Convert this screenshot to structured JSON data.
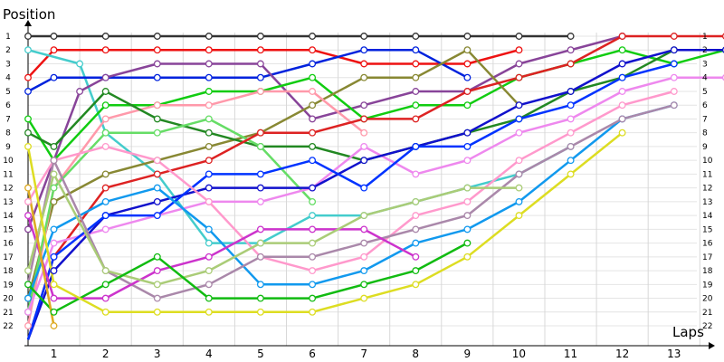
{
  "chart_data": {
    "type": "line",
    "title": "",
    "ylabel": "Position",
    "xlabel": "Laps",
    "x_ticks": [
      "1",
      "2",
      "3",
      "4",
      "5",
      "6",
      "7",
      "8",
      "9",
      "10",
      "11",
      "12",
      "13"
    ],
    "y_ticks": [
      "1",
      "2",
      "3",
      "4",
      "5",
      "6",
      "7",
      "8",
      "9",
      "10",
      "11",
      "12",
      "13",
      "14",
      "15",
      "16",
      "17",
      "18",
      "19",
      "20",
      "21",
      "22"
    ],
    "xlim": [
      0,
      13.4
    ],
    "ylim": [
      1,
      22
    ],
    "grid": true,
    "series": [
      {
        "color": "#333333",
        "points": [
          [
            0,
            1
          ],
          [
            0.5,
            1
          ],
          [
            1.5,
            1
          ],
          [
            2.5,
            1
          ],
          [
            3.5,
            1
          ],
          [
            4.5,
            1
          ],
          [
            5.5,
            1
          ],
          [
            6.5,
            1
          ],
          [
            7.5,
            1
          ],
          [
            8.5,
            1
          ],
          [
            9.5,
            1
          ],
          [
            10.5,
            1
          ]
        ]
      },
      {
        "color": "#ee1111",
        "points": [
          [
            0,
            4
          ],
          [
            0.5,
            2
          ],
          [
            1.5,
            2
          ],
          [
            2.5,
            2
          ],
          [
            3.5,
            2
          ],
          [
            4.5,
            2
          ],
          [
            5.5,
            2
          ],
          [
            6.5,
            3
          ],
          [
            7.5,
            3
          ],
          [
            8.5,
            3
          ],
          [
            9.5,
            2
          ]
        ]
      },
      {
        "color": "#44cccc",
        "points": [
          [
            0,
            2
          ],
          [
            1,
            3
          ],
          [
            1.5,
            8
          ],
          [
            2.5,
            11
          ],
          [
            3.5,
            16
          ],
          [
            4.5,
            16
          ],
          [
            5.5,
            14
          ],
          [
            6.5,
            14
          ],
          [
            7.5,
            13
          ],
          [
            8.5,
            12
          ],
          [
            9.5,
            11
          ],
          [
            10.5,
            9
          ]
        ]
      },
      {
        "color": "#0022dd",
        "points": [
          [
            0,
            5
          ],
          [
            0.5,
            4
          ],
          [
            1.5,
            4
          ],
          [
            2.5,
            4
          ],
          [
            3.5,
            4
          ],
          [
            4.5,
            4
          ],
          [
            5.5,
            3
          ],
          [
            6.5,
            2
          ],
          [
            7.5,
            2
          ],
          [
            8.5,
            4
          ]
        ]
      },
      {
        "color": "#884499",
        "points": [
          [
            0,
            15
          ],
          [
            1,
            5
          ],
          [
            1.5,
            4
          ],
          [
            2.5,
            3
          ],
          [
            3.5,
            3
          ],
          [
            4.5,
            3
          ],
          [
            5.5,
            7
          ],
          [
            6.5,
            6
          ],
          [
            7.5,
            5
          ],
          [
            8.5,
            5
          ],
          [
            9.5,
            3
          ],
          [
            10.5,
            2
          ],
          [
            11.5,
            1
          ]
        ]
      },
      {
        "color": "#11cc11",
        "points": [
          [
            0,
            7
          ],
          [
            0.5,
            10
          ],
          [
            1.5,
            6
          ],
          [
            2.5,
            6
          ],
          [
            3.5,
            5
          ],
          [
            4.5,
            5
          ],
          [
            5.5,
            4
          ],
          [
            6.5,
            7
          ],
          [
            7.5,
            6
          ],
          [
            8.5,
            6
          ],
          [
            9.5,
            4
          ],
          [
            10.5,
            3
          ],
          [
            11.5,
            2
          ],
          [
            12.5,
            3
          ],
          [
            13.5,
            2
          ]
        ]
      },
      {
        "color": "#888833",
        "points": [
          [
            0,
            20
          ],
          [
            0.5,
            13
          ],
          [
            1.5,
            11
          ],
          [
            2.5,
            10
          ],
          [
            3.5,
            9
          ],
          [
            4.5,
            8
          ],
          [
            5.5,
            6
          ],
          [
            6.5,
            4
          ],
          [
            7.5,
            4
          ],
          [
            8.5,
            2
          ],
          [
            9.5,
            6
          ]
        ]
      },
      {
        "color": "#ff99aa",
        "points": [
          [
            0,
            22
          ],
          [
            0.5,
            12
          ],
          [
            1.5,
            7
          ],
          [
            2.5,
            6
          ],
          [
            3.5,
            6
          ],
          [
            4.5,
            5
          ],
          [
            5.5,
            5
          ],
          [
            6.5,
            8
          ]
        ]
      },
      {
        "color": "#228822",
        "points": [
          [
            0,
            8
          ],
          [
            0.5,
            9
          ],
          [
            1.5,
            5
          ],
          [
            2.5,
            7
          ],
          [
            3.5,
            8
          ],
          [
            4.5,
            9
          ],
          [
            5.5,
            9
          ],
          [
            6.5,
            10
          ],
          [
            7.5,
            9
          ],
          [
            8.5,
            8
          ],
          [
            9.5,
            7
          ],
          [
            10.5,
            5
          ],
          [
            11.5,
            4
          ],
          [
            12.5,
            2
          ]
        ]
      },
      {
        "color": "#66dd66",
        "points": [
          [
            0,
            21
          ],
          [
            0.5,
            12
          ],
          [
            1.5,
            8
          ],
          [
            2.5,
            8
          ],
          [
            3.5,
            7
          ],
          [
            4.5,
            9
          ],
          [
            5.5,
            13
          ]
        ]
      },
      {
        "color": "#dd2222",
        "points": [
          [
            0,
            23
          ],
          [
            0.5,
            17
          ],
          [
            1.5,
            12
          ],
          [
            2.5,
            11
          ],
          [
            3.5,
            10
          ],
          [
            4.5,
            8
          ],
          [
            5.5,
            8
          ],
          [
            6.5,
            7
          ],
          [
            7.5,
            7
          ],
          [
            8.5,
            5
          ],
          [
            9.5,
            4
          ],
          [
            10.5,
            3
          ],
          [
            11.5,
            1
          ],
          [
            12.5,
            1
          ],
          [
            13.5,
            1
          ]
        ]
      },
      {
        "color": "#ee88ee",
        "points": [
          [
            0,
            21
          ],
          [
            0.5,
            16
          ],
          [
            1.5,
            15
          ],
          [
            2.5,
            14
          ],
          [
            3.5,
            13
          ],
          [
            4.5,
            13
          ],
          [
            5.5,
            12
          ],
          [
            6.5,
            9
          ],
          [
            7.5,
            11
          ],
          [
            8.5,
            10
          ],
          [
            9.5,
            8
          ],
          [
            10.5,
            7
          ],
          [
            11.5,
            5
          ],
          [
            12.5,
            4
          ],
          [
            13.5,
            4
          ]
        ]
      },
      {
        "color": "#1111cc",
        "points": [
          [
            0,
            23
          ],
          [
            0.5,
            18
          ],
          [
            1.5,
            14
          ],
          [
            2.5,
            13
          ],
          [
            3.5,
            12
          ],
          [
            4.5,
            12
          ],
          [
            5.5,
            12
          ],
          [
            6.5,
            10
          ],
          [
            7.5,
            9
          ],
          [
            8.5,
            8
          ],
          [
            9.5,
            6
          ],
          [
            10.5,
            5
          ],
          [
            11.5,
            3
          ],
          [
            12.5,
            2
          ],
          [
            13.5,
            2
          ]
        ]
      },
      {
        "color": "#0033ff",
        "points": [
          [
            0,
            23
          ],
          [
            0.5,
            17
          ],
          [
            1.5,
            14
          ],
          [
            2.5,
            14
          ],
          [
            3.5,
            11
          ],
          [
            4.5,
            11
          ],
          [
            5.5,
            10
          ],
          [
            6.5,
            12
          ],
          [
            7.5,
            9
          ],
          [
            8.5,
            9
          ],
          [
            9.5,
            7
          ],
          [
            10.5,
            6
          ],
          [
            11.5,
            4
          ],
          [
            12.5,
            3
          ]
        ]
      },
      {
        "color": "#ff99cc",
        "points": [
          [
            0,
            13
          ],
          [
            0.5,
            10
          ],
          [
            1.5,
            9
          ],
          [
            2.5,
            10
          ],
          [
            3.5,
            13
          ],
          [
            4.5,
            17
          ],
          [
            5.5,
            18
          ],
          [
            6.5,
            17
          ],
          [
            7.5,
            14
          ],
          [
            8.5,
            13
          ],
          [
            9.5,
            10
          ],
          [
            10.5,
            8
          ],
          [
            11.5,
            6
          ],
          [
            12.5,
            5
          ]
        ]
      },
      {
        "color": "#1199ee",
        "points": [
          [
            0,
            20
          ],
          [
            0.5,
            15
          ],
          [
            1.5,
            13
          ],
          [
            2.5,
            12
          ],
          [
            3.5,
            15
          ],
          [
            4.5,
            19
          ],
          [
            5.5,
            19
          ],
          [
            6.5,
            18
          ],
          [
            7.5,
            16
          ],
          [
            8.5,
            15
          ],
          [
            9.5,
            13
          ],
          [
            10.5,
            10
          ],
          [
            11.5,
            7
          ],
          [
            12.5,
            6
          ]
        ]
      },
      {
        "color": "#aa88aa",
        "points": [
          [
            0,
            19
          ],
          [
            0.5,
            10
          ],
          [
            1.5,
            18
          ],
          [
            2.5,
            20
          ],
          [
            3.5,
            19
          ],
          [
            4.5,
            17
          ],
          [
            5.5,
            17
          ],
          [
            6.5,
            16
          ],
          [
            7.5,
            15
          ],
          [
            8.5,
            14
          ],
          [
            9.5,
            11
          ],
          [
            10.5,
            9
          ],
          [
            11.5,
            7
          ],
          [
            12.5,
            6
          ]
        ]
      },
      {
        "color": "#cc33cc",
        "points": [
          [
            0,
            14
          ],
          [
            0.5,
            20
          ],
          [
            1.5,
            20
          ],
          [
            2.5,
            18
          ],
          [
            3.5,
            17
          ],
          [
            4.5,
            15
          ],
          [
            5.5,
            15
          ],
          [
            6.5,
            15
          ],
          [
            7.5,
            17
          ]
        ]
      },
      {
        "color": "#aacc77",
        "points": [
          [
            0,
            18
          ],
          [
            0.5,
            11
          ],
          [
            1.5,
            18
          ],
          [
            2.5,
            19
          ],
          [
            3.5,
            18
          ],
          [
            4.5,
            16
          ],
          [
            5.5,
            16
          ],
          [
            6.5,
            14
          ],
          [
            7.5,
            13
          ],
          [
            8.5,
            12
          ],
          [
            9.5,
            12
          ]
        ]
      },
      {
        "color": "#11bb11",
        "points": [
          [
            0,
            19
          ],
          [
            0.5,
            21
          ],
          [
            1.5,
            19
          ],
          [
            2.5,
            17
          ],
          [
            3.5,
            20
          ],
          [
            4.5,
            20
          ],
          [
            5.5,
            20
          ],
          [
            6.5,
            19
          ],
          [
            7.5,
            18
          ],
          [
            8.5,
            16
          ]
        ]
      },
      {
        "color": "#dddd22",
        "points": [
          [
            0,
            9
          ],
          [
            0.5,
            19
          ],
          [
            1.5,
            21
          ],
          [
            2.5,
            21
          ],
          [
            3.5,
            21
          ],
          [
            4.5,
            21
          ],
          [
            5.5,
            21
          ],
          [
            6.5,
            20
          ],
          [
            7.5,
            19
          ],
          [
            8.5,
            17
          ],
          [
            9.5,
            14
          ],
          [
            10.5,
            11
          ],
          [
            11.5,
            8
          ]
        ]
      },
      {
        "color": "#ddaa22",
        "points": [
          [
            0,
            12
          ],
          [
            0.5,
            22
          ]
        ]
      }
    ]
  }
}
